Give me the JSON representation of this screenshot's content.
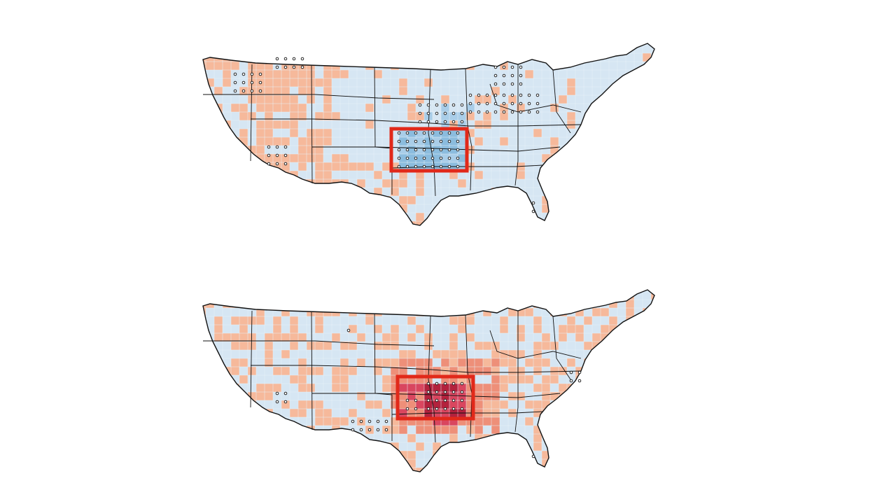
{
  "figure": {
    "colors": {
      "background": "#ffffff",
      "land_base": "#d6e6f3",
      "land_grid": "#e8f1f8",
      "warm_light": "#f6b99b",
      "warm_mid": "#ee8f79",
      "warm_strong": "#d9465f",
      "warm_darkest": "#b3223d",
      "cool_mid": "#a9cde8",
      "cool_strong": "#8bbcde",
      "boundary": "#111111",
      "highlight_box": "#e1291a",
      "significance_dot": "#111111"
    },
    "panels": [
      {
        "id": "top",
        "anomaly_sign": "cool",
        "region_box_color": "#e1291a"
      },
      {
        "id": "bottom",
        "anomaly_sign": "warm",
        "region_box_color": "#e1291a"
      }
    ]
  }
}
